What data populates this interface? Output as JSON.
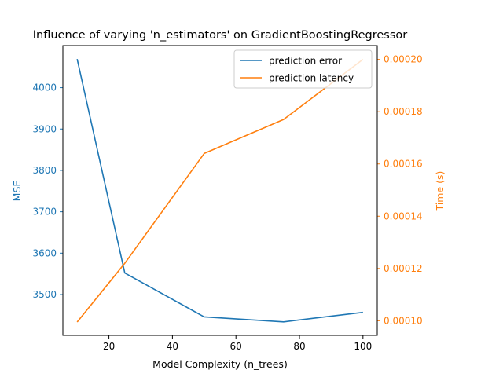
{
  "chart_data": {
    "type": "line",
    "title": "Influence of varying 'n_estimators' on GradientBoostingRegressor",
    "xlabel": "Model Complexity (n_trees)",
    "ylabel_left": "MSE",
    "ylabel_right": "Time (s)",
    "xlim": [
      5.5,
      104.5
    ],
    "ylim_left": [
      3401.3,
      4101.7
    ],
    "ylim_right": [
      9.44e-05,
      0.0002053
    ],
    "x": [
      10,
      25,
      50,
      75,
      100
    ],
    "xticks": [
      20,
      40,
      60,
      80,
      100
    ],
    "yticks_left": [
      3500,
      3600,
      3700,
      3800,
      3900,
      4000
    ],
    "yticks_right": [
      0.0001,
      0.00012,
      0.00014,
      0.00016,
      0.00018,
      0.0002
    ],
    "ytick_labels_right": [
      "0.00010",
      "0.00012",
      "0.00014",
      "0.00016",
      "0.00018",
      "0.00020"
    ],
    "series": [
      {
        "name": "prediction error",
        "axis": "left",
        "color": "#1f77b4",
        "values": [
          4069,
          3552,
          3446,
          3434,
          3457
        ]
      },
      {
        "name": "prediction latency",
        "axis": "right",
        "color": "#ff7f0e",
        "values": [
          9.95e-05,
          0.000122,
          0.000164,
          0.000177,
          0.0002
        ]
      }
    ],
    "legend_position": "top-right",
    "grid": false
  }
}
